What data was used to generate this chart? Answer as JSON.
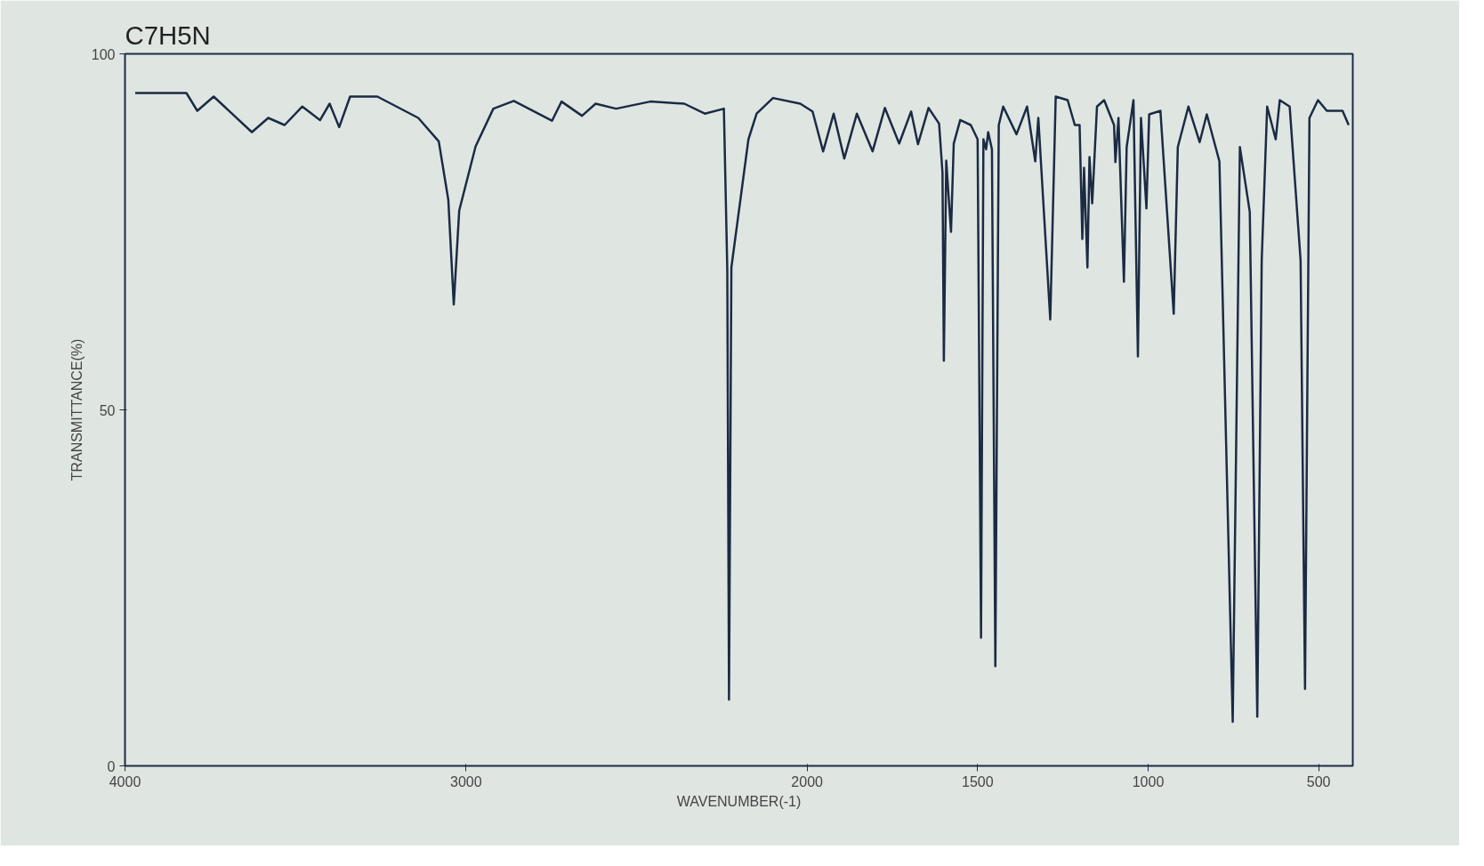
{
  "chart_data": {
    "type": "line",
    "title": "C7H5N",
    "xlabel": "WAVENUMBER(-1)",
    "ylabel": "TRANSMITTANCE(%)",
    "xlim": [
      4000,
      400
    ],
    "ylim": [
      0,
      100
    ],
    "xticks": [
      4000,
      3000,
      2000,
      1500,
      1000,
      500
    ],
    "yticks": [
      0,
      50,
      100
    ],
    "grid": false,
    "marker": "none",
    "line_style": "solid",
    "series": [
      {
        "color": "#1c2b44",
        "x": [
          3970,
          3820,
          3788,
          3740,
          3628,
          3580,
          3532,
          3480,
          3428,
          3400,
          3372,
          3340,
          3260,
          3140,
          3080,
          3052,
          3036,
          3020,
          2972,
          2920,
          2860,
          2748,
          2720,
          2660,
          2620,
          2560,
          2460,
          2360,
          2300,
          2244,
          2234,
          2229,
          2222,
          2172,
          2148,
          2100,
          2020,
          1984,
          1953,
          1922,
          1891,
          1854,
          1808,
          1772,
          1730,
          1695,
          1675,
          1644,
          1613,
          1603,
          1599,
          1592,
          1578,
          1570,
          1551,
          1520,
          1500,
          1490,
          1483,
          1475,
          1469,
          1458,
          1448,
          1438,
          1425,
          1386,
          1355,
          1331,
          1322,
          1287,
          1271,
          1236,
          1215,
          1201,
          1193,
          1188,
          1178,
          1172,
          1164,
          1150,
          1129,
          1100,
          1096,
          1087,
          1071,
          1063,
          1043,
          1030,
          1021,
          1005,
          997,
          964,
          925,
          913,
          882,
          849,
          828,
          791,
          752,
          731,
          702,
          680,
          667,
          651,
          626,
          614,
          585,
          553,
          540,
          527,
          502,
          476,
          430,
          412
        ],
        "values": [
          94.5,
          94.5,
          92,
          94,
          89,
          91,
          90,
          92.6,
          90.7,
          93,
          89.7,
          94,
          94,
          91,
          87.7,
          79.5,
          64.8,
          78,
          87,
          92.3,
          93.4,
          90.6,
          93.3,
          91.3,
          93,
          92.3,
          93.3,
          93,
          91.6,
          92.3,
          69.7,
          9.3,
          70,
          88,
          91.6,
          93.8,
          93,
          91.9,
          86.3,
          91.6,
          85.3,
          91.6,
          86.3,
          92.4,
          87.4,
          91.9,
          87.3,
          92.4,
          90.2,
          83.3,
          56.9,
          85,
          75,
          87.4,
          90.7,
          90,
          88,
          18,
          88,
          86.6,
          89,
          86.6,
          14,
          90,
          92.6,
          88.7,
          92.6,
          84.9,
          91,
          62.7,
          94,
          93.5,
          90,
          90,
          74,
          84,
          70,
          85.5,
          79,
          92.6,
          93.5,
          90,
          84.8,
          91,
          68,
          86.9,
          93.5,
          57.5,
          91,
          78.3,
          91.5,
          92,
          63.5,
          86.9,
          92.6,
          87.6,
          91.5,
          84.9,
          6.2,
          86.9,
          77.8,
          6.9,
          71,
          92.6,
          88,
          93.5,
          92.6,
          71,
          10.8,
          91,
          93.5,
          92,
          92,
          90
        ]
      }
    ]
  }
}
